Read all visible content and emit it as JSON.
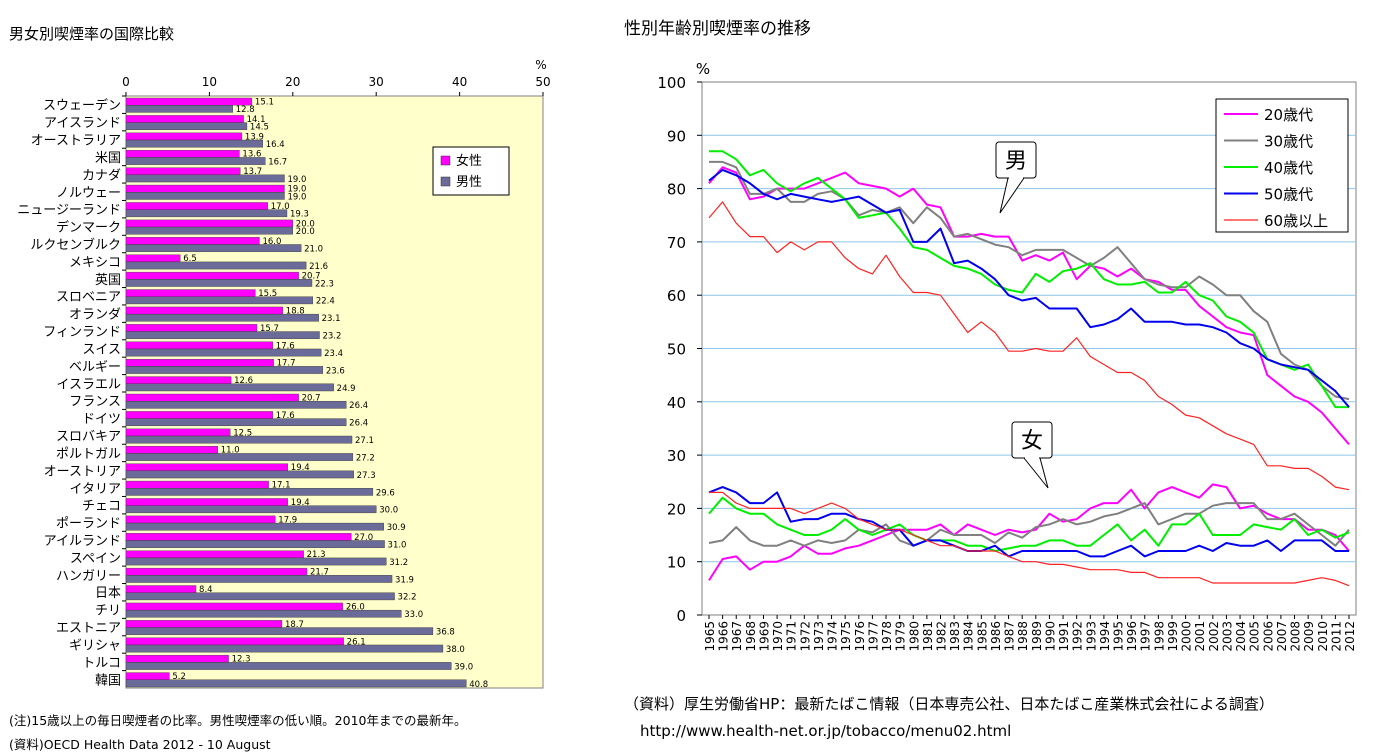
{
  "left_title": "男女別喫煙率の国際比較",
  "right_title": "性別年齢別喫煙率の推移",
  "left_note1": "(注)15歳以上の毎日喫煙者の比率。男性喫煙率の低い順。2010年までの最新年。",
  "left_note2": "(資料)OECD Health Data 2012 - 10 August",
  "right_source1": "（資料）厚生労働省HP：最新たばこ情報（日本専売公社、日本たばこ産業株式会社による調査）",
  "right_source2": "http://www.health-net.or.jp/tobacco/menu02.html",
  "chart_data": [
    {
      "type": "bar",
      "orientation": "horizontal",
      "unit": "%",
      "xlim": [
        0,
        50
      ],
      "xticks": [
        0,
        10,
        20,
        30,
        40,
        50
      ],
      "legend_position": "top-right",
      "colors": {
        "female": "#ff00ff",
        "male": "#6b6b99",
        "plot_bg": "#ffffcc"
      },
      "categories": [
        "スウェーデン",
        "アイスランド",
        "オーストラリア",
        "米国",
        "カナダ",
        "ノルウェー",
        "ニュージーランド",
        "デンマーク",
        "ルクセンブルク",
        "メキシコ",
        "英国",
        "スロベニア",
        "オランダ",
        "フィンランド",
        "スイス",
        "ベルギー",
        "イスラエル",
        "フランス",
        "ドイツ",
        "スロバキア",
        "ポルトガル",
        "オーストリア",
        "イタリア",
        "チェコ",
        "ポーランド",
        "アイルランド",
        "スペイン",
        "ハンガリー",
        "日本",
        "チリ",
        "エストニア",
        "ギリシャ",
        "トルコ",
        "韓国"
      ],
      "series": [
        {
          "name": "女性",
          "values": [
            15.1,
            14.1,
            13.9,
            13.6,
            13.7,
            19.0,
            17.0,
            20.0,
            16.0,
            6.5,
            20.7,
            15.5,
            18.8,
            15.7,
            17.6,
            17.7,
            12.6,
            20.7,
            17.6,
            12.5,
            11.0,
            19.4,
            17.1,
            19.4,
            17.9,
            27.0,
            21.3,
            21.7,
            8.4,
            26.0,
            18.7,
            26.1,
            12.3,
            5.2
          ],
          "labels": [
            "15.1",
            "14.1",
            "13.9",
            "13.6",
            "13.7",
            "19.0",
            "17.0",
            "20.0",
            "16.0",
            "6.5",
            "20.7",
            "15.5",
            "18.8",
            "15.7",
            "17.6",
            "17.7",
            "12.6",
            "20.7",
            "17.6",
            "12.5",
            "11.0",
            "19.4",
            "17.1",
            "19.4",
            "17.9",
            "27.0",
            "21.3",
            "21.7",
            "8.4",
            "26.0",
            "18.7",
            "26.1",
            "12.3",
            "5.2"
          ]
        },
        {
          "name": "男性",
          "values": [
            12.8,
            14.5,
            16.4,
            16.7,
            19.0,
            19.0,
            19.3,
            20.0,
            21.0,
            21.6,
            22.3,
            22.4,
            23.1,
            23.2,
            23.4,
            23.6,
            24.9,
            26.4,
            26.4,
            27.1,
            27.2,
            27.3,
            29.6,
            30.0,
            30.9,
            31.0,
            31.2,
            31.9,
            32.2,
            33.0,
            36.8,
            38.0,
            39.0,
            40.8
          ],
          "labels": [
            "12.8",
            "14.5",
            "16.4",
            "16.7",
            "19.0",
            "19.0",
            "19.3",
            "20.0",
            "21.0",
            "21.6",
            "22.3",
            "22.4",
            "23.1",
            "23.2",
            "23.4",
            "23.6",
            "24.9",
            "26.4",
            "26.4",
            "27.1",
            "27.2",
            "27.3",
            "29.6",
            "30.0",
            "30.9",
            "31.0",
            "31.2",
            "31.9",
            "32.2",
            "33.0",
            "36.8",
            "38.0",
            "39.0",
            "40.8"
          ]
        }
      ]
    },
    {
      "type": "line",
      "unit": "%",
      "ylim": [
        0,
        100
      ],
      "yticks": [
        0,
        10,
        20,
        30,
        40,
        50,
        60,
        70,
        80,
        90,
        100
      ],
      "grid": true,
      "legend_position": "top-right",
      "annotations": [
        "男",
        "女"
      ],
      "x": [
        "1965",
        "1966",
        "1967",
        "1968",
        "1969",
        "1970",
        "1971",
        "1972",
        "1973",
        "1974",
        "1975",
        "1976",
        "1977",
        "1978",
        "1979",
        "1980",
        "1981",
        "1982",
        "1983",
        "1984",
        "1985",
        "1986",
        "1987",
        "1988",
        "1989",
        "1990",
        "1991",
        "1992",
        "1993",
        "1994",
        "1995",
        "1996",
        "1997",
        "1998",
        "1999",
        "2000",
        "2001",
        "2002",
        "2003",
        "2004",
        "2005",
        "2006",
        "2007",
        "2008",
        "2009",
        "2010",
        "2011",
        "2012"
      ],
      "series": [
        {
          "name": "20歳代",
          "group": "男",
          "color": "#ff00ff",
          "values": [
            81,
            84,
            83,
            78,
            78.5,
            80,
            80,
            80,
            81,
            82,
            83,
            81,
            80.5,
            80,
            78.5,
            80,
            77,
            76.5,
            71,
            71,
            71.5,
            71,
            71,
            66.5,
            67.5,
            66.5,
            68,
            63,
            65.5,
            65,
            63.5,
            65,
            63,
            62.5,
            61,
            61,
            58,
            56,
            54,
            53,
            52.5,
            45,
            43,
            41,
            40,
            38,
            35,
            32
          ]
        },
        {
          "name": "30歳代",
          "group": "男",
          "color": "#808080",
          "values": [
            85,
            85,
            84,
            79,
            79,
            80,
            77.5,
            77.5,
            79,
            79.5,
            78,
            75,
            76,
            75.5,
            76.5,
            73.5,
            76.5,
            74.5,
            71,
            71.5,
            70.5,
            69.5,
            69,
            67.5,
            68.5,
            68.5,
            68.5,
            67,
            65.5,
            67,
            69,
            66,
            63,
            62,
            61.5,
            61.5,
            63.5,
            62,
            60,
            60,
            57,
            55,
            49,
            47,
            46,
            43,
            41,
            40.5
          ]
        },
        {
          "name": "40歳代",
          "group": "男",
          "color": "#00ee00",
          "values": [
            87,
            87,
            85.5,
            82.5,
            83.5,
            81,
            79.5,
            81,
            82,
            80,
            78,
            74.5,
            75,
            75.5,
            72.5,
            69,
            68.5,
            67,
            65.5,
            65,
            64,
            62,
            61,
            60.5,
            64,
            62.5,
            64.5,
            65,
            66,
            63,
            62,
            62,
            62.5,
            60.5,
            60.5,
            62.5,
            60,
            59,
            56,
            55,
            53,
            48,
            47,
            46,
            47,
            43,
            39,
            39
          ]
        },
        {
          "name": "50歳代",
          "group": "男",
          "color": "#0000ee",
          "values": [
            81.5,
            83.5,
            82.5,
            81,
            79,
            78,
            79,
            78.5,
            78,
            77.5,
            78,
            78.5,
            77,
            75.5,
            76,
            70,
            70,
            72.5,
            66,
            66.5,
            65,
            63,
            60,
            59,
            59.5,
            57.5,
            57.5,
            57.5,
            54,
            54.5,
            55.5,
            57.5,
            55,
            55,
            55,
            54.5,
            54.5,
            54,
            53,
            51,
            50,
            48,
            47,
            46.5,
            46,
            44,
            42,
            39
          ]
        },
        {
          "name": "60歳以上",
          "group": "男",
          "color": "#ff2222",
          "values": [
            74.5,
            77.5,
            73.5,
            71,
            71,
            68,
            70,
            68.5,
            70,
            70,
            67,
            65,
            64,
            67.5,
            63.5,
            60.5,
            60.5,
            60,
            56.5,
            53,
            55,
            53,
            49.5,
            49.5,
            50,
            49.5,
            49.5,
            52,
            48.5,
            47,
            45.5,
            45.5,
            44,
            41,
            39.5,
            37.5,
            37,
            35.5,
            34,
            33,
            32,
            28,
            28,
            27.5,
            27.5,
            26,
            24,
            23.5
          ]
        },
        {
          "name": "20歳代",
          "group": "女",
          "color": "#ff00ff",
          "values": [
            6.5,
            10.5,
            11,
            8.5,
            10,
            10,
            11,
            13,
            11.5,
            11.5,
            12.5,
            13,
            14,
            15,
            16,
            16,
            16,
            17,
            15,
            17,
            16,
            15,
            16,
            15.5,
            16,
            19,
            17.5,
            18,
            20,
            21,
            21,
            23.5,
            20,
            23,
            24,
            23,
            22,
            24.5,
            24,
            20,
            20.5,
            19,
            18,
            18,
            16,
            16,
            15,
            12
          ]
        },
        {
          "name": "30歳代",
          "group": "女",
          "color": "#808080",
          "values": [
            13.5,
            14,
            16.5,
            14,
            13,
            13,
            14,
            13,
            14,
            13.5,
            14,
            16,
            15.5,
            17,
            14,
            13,
            14,
            16,
            15,
            15,
            15,
            13.5,
            15.5,
            14.5,
            16.5,
            17,
            18,
            17,
            17.5,
            18.5,
            19,
            20,
            21,
            17,
            18,
            19,
            19,
            20.5,
            21,
            21,
            21,
            18,
            18,
            19,
            17,
            15,
            13,
            16
          ]
        },
        {
          "name": "40歳代",
          "group": "女",
          "color": "#00ee00",
          "values": [
            19,
            22,
            20,
            19,
            19,
            17,
            16,
            15,
            15,
            16,
            18,
            16,
            15,
            16,
            17,
            15,
            14,
            14,
            14,
            13,
            13,
            12,
            12.5,
            13,
            13,
            14,
            14,
            13,
            13,
            15,
            17,
            14,
            16,
            13,
            17,
            17,
            19,
            15,
            15,
            15,
            17,
            16.5,
            16,
            18,
            15,
            16,
            14.5,
            15.5
          ]
        },
        {
          "name": "50歳代",
          "group": "女",
          "color": "#0000ee",
          "values": [
            23,
            24,
            23,
            21,
            21,
            23,
            17.5,
            18,
            18,
            19,
            19,
            18,
            17.5,
            16,
            16,
            13,
            14,
            14,
            13,
            12,
            12,
            13,
            11,
            12,
            12,
            12,
            12,
            12,
            11,
            11,
            12,
            13,
            11,
            12,
            12,
            12,
            13,
            12,
            13.5,
            13,
            13,
            14,
            12,
            14,
            14,
            14,
            12,
            12
          ]
        },
        {
          "name": "60歳以上",
          "group": "女",
          "color": "#ff2222",
          "values": [
            23,
            23,
            21,
            20,
            20,
            20,
            20,
            19,
            20,
            21,
            20,
            18,
            17,
            16,
            16,
            15,
            14,
            13,
            13,
            12,
            12,
            12,
            11,
            10,
            10,
            9.5,
            9.5,
            9,
            8.5,
            8.5,
            8.5,
            8,
            8,
            7,
            7,
            7,
            7,
            6,
            6,
            6,
            6,
            6,
            6,
            6,
            6.5,
            7,
            6.5,
            5.5
          ]
        }
      ]
    }
  ]
}
